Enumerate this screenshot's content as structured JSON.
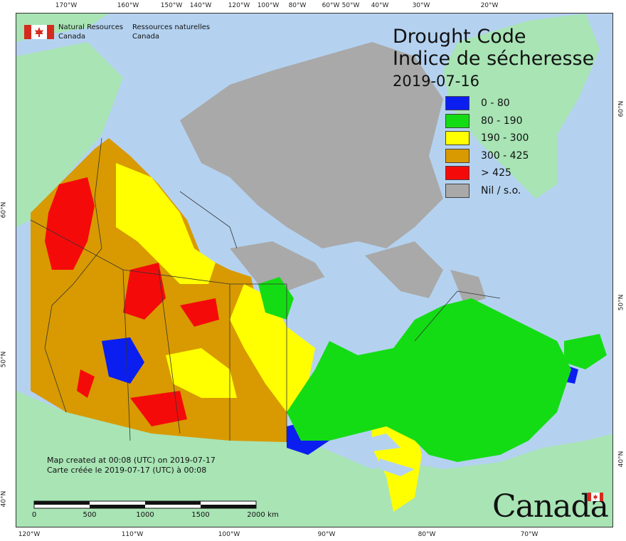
{
  "title": {
    "en": "Drought Code",
    "fr": "Indice de sécheresse",
    "date": "2019-07-16"
  },
  "legend": [
    {
      "label": "0 - 80",
      "color": "#0a1ef0"
    },
    {
      "label": "80 - 190",
      "color": "#14dc14"
    },
    {
      "label": "190 - 300",
      "color": "#ffff00"
    },
    {
      "label": "300 - 425",
      "color": "#d89a00"
    },
    {
      "label": "> 425",
      "color": "#f50a0a"
    },
    {
      "label": "Nil / s.o.",
      "color": "#a9a9a9"
    }
  ],
  "agency": {
    "en_line1": "Natural Resources",
    "en_line2": "Canada",
    "fr_line1": "Ressources naturelles",
    "fr_line2": "Canada"
  },
  "credits": {
    "en": "Map created at 00:08 (UTC) on 2019-07-17",
    "fr": "Carte créée le 2019-07-17 (UTC) à 00:08"
  },
  "scale": {
    "ticks": [
      "0",
      "500",
      "1000",
      "1500",
      "2000"
    ],
    "unit": "km"
  },
  "wordmark": "Canada",
  "graticule": {
    "top": [
      "170°W",
      "160°W",
      "150°W",
      "140°W",
      "120°W",
      "100°W",
      "80°W",
      "60°W",
      "50°W",
      "40°W",
      "30°W",
      "20°W"
    ],
    "bottom": [
      "120°W",
      "110°W",
      "100°W",
      "90°W",
      "80°W",
      "70°W"
    ],
    "left": [
      "60°N",
      "50°N",
      "40°N"
    ],
    "right": [
      "60°N",
      "50°N",
      "40°N"
    ]
  },
  "colors": {
    "ocean": "#b4d2f0",
    "foreign_land": "#a8e4b4",
    "boundary": "#333333"
  }
}
